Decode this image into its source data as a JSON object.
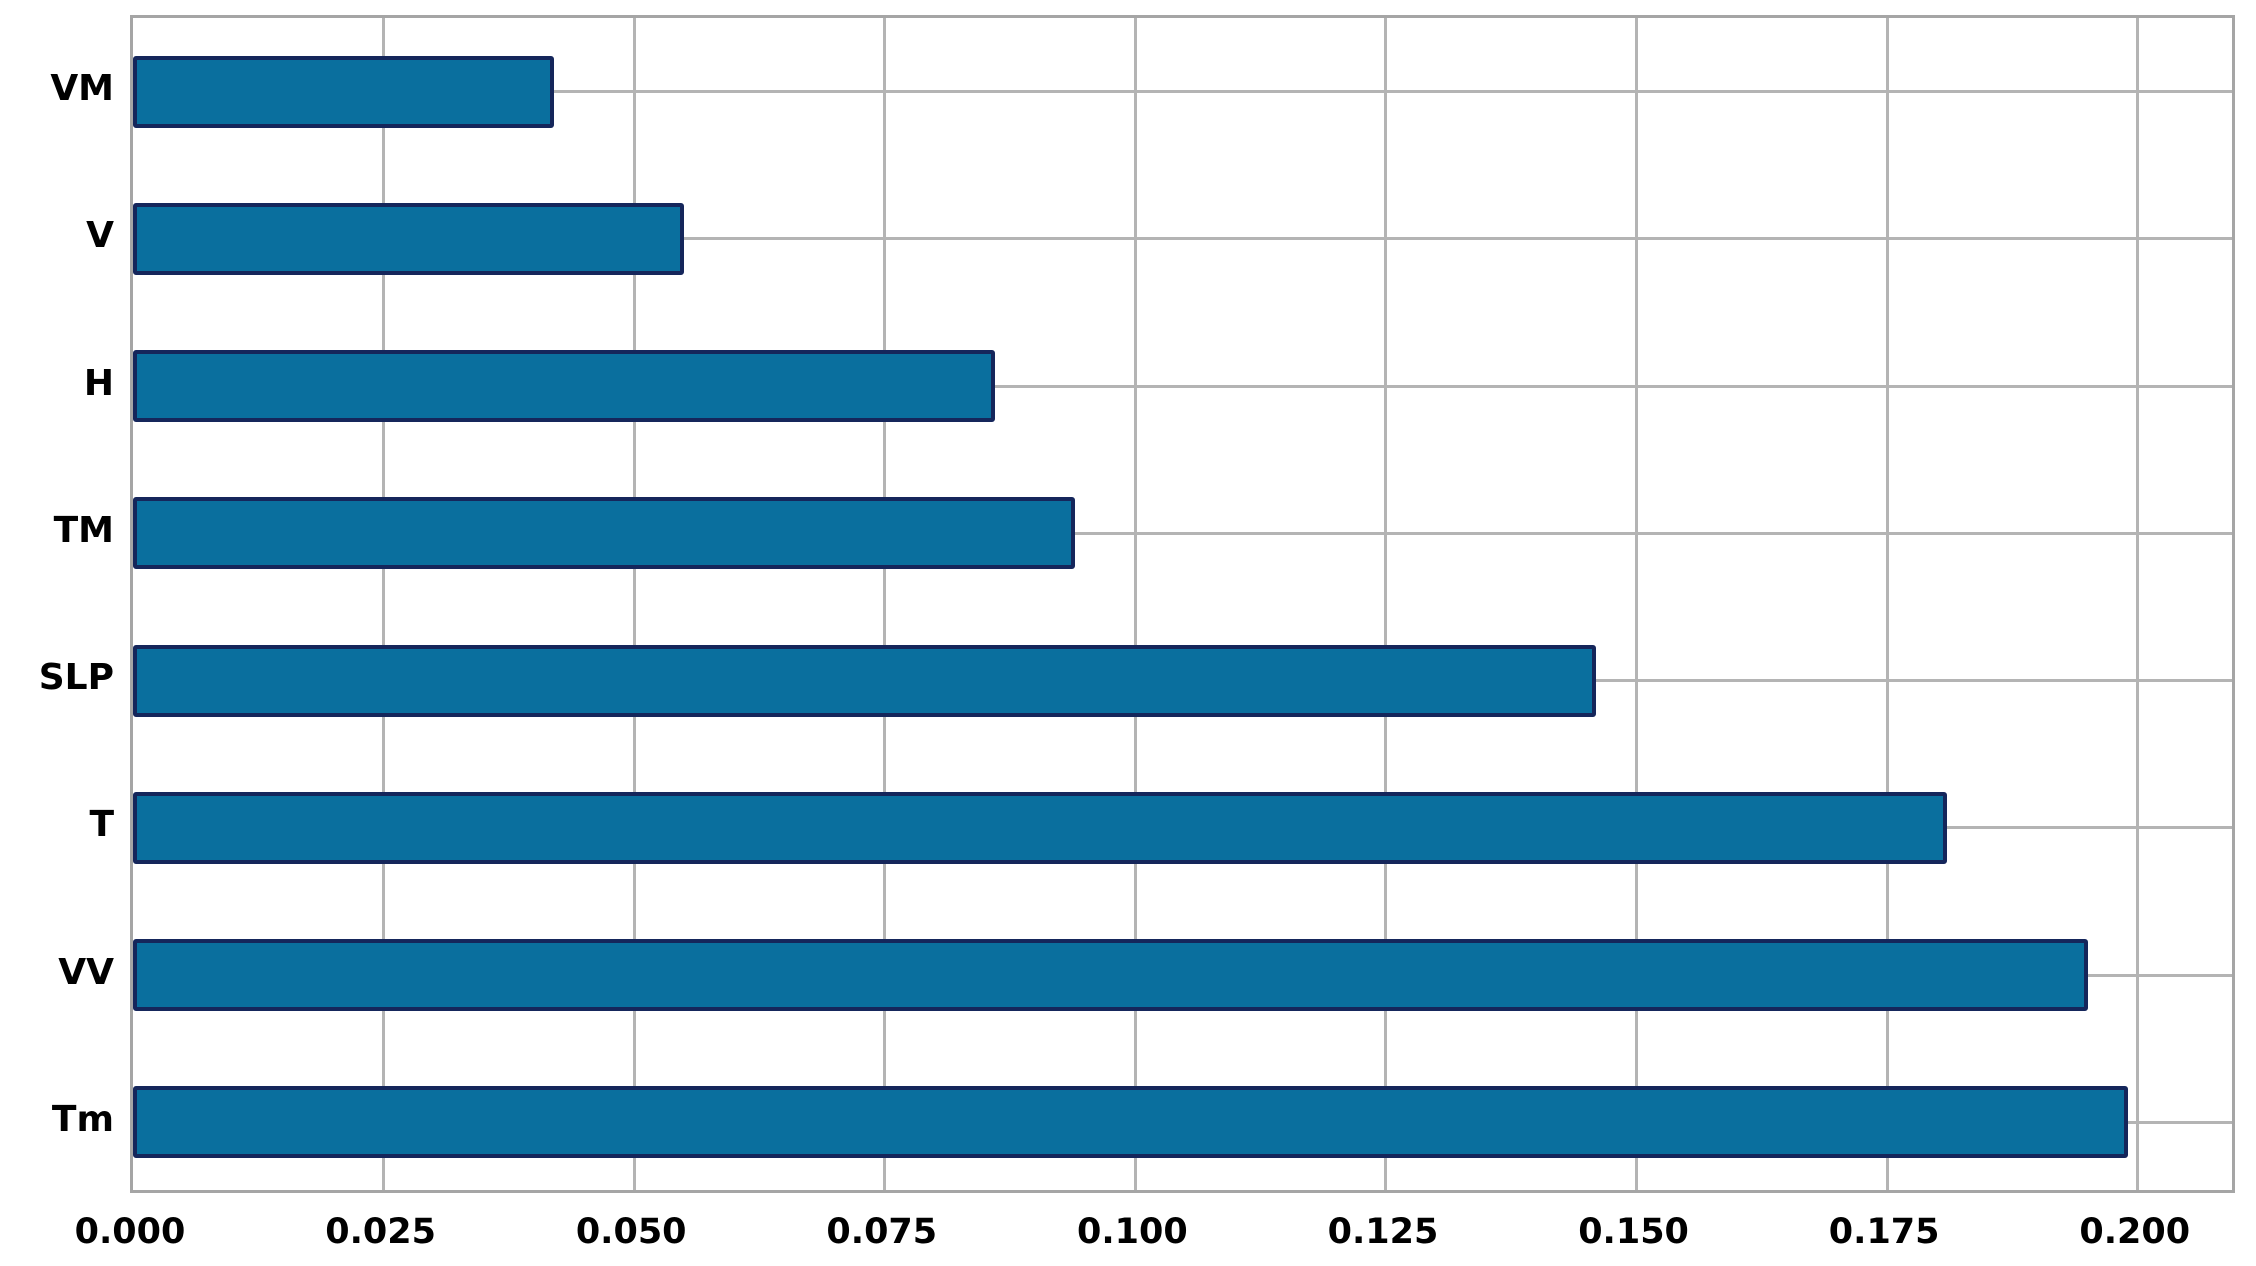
{
  "chart_data": {
    "type": "bar",
    "orientation": "horizontal",
    "title": "",
    "xlabel": "",
    "ylabel": "",
    "categories": [
      "VM",
      "V",
      "H",
      "TM",
      "SLP",
      "T",
      "VV",
      "Tm"
    ],
    "values": [
      0.042,
      0.055,
      0.086,
      0.094,
      0.146,
      0.181,
      0.195,
      0.199
    ],
    "x_ticks": [
      0.0,
      0.025,
      0.05,
      0.075,
      0.1,
      0.125,
      0.15,
      0.175,
      0.2
    ],
    "x_tick_labels": [
      "0.000",
      "0.025",
      "0.050",
      "0.075",
      "0.100",
      "0.125",
      "0.150",
      "0.175",
      "0.200"
    ],
    "xlim": [
      0.0,
      0.21
    ],
    "grid": true,
    "legend": false,
    "bar_color": "#0a6f9e",
    "bar_border_color": "#15265b",
    "grid_color": "#b4b4b4",
    "frame_color": "#a5a5a5",
    "background_color": "#ffffff",
    "tick_label_color": "#000000"
  }
}
